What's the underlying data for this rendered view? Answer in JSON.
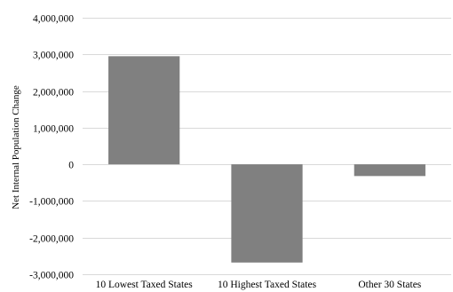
{
  "chart_data": {
    "type": "bar",
    "categories": [
      "10 Lowest Taxed States",
      "10 Highest Taxed States",
      "Other 30 States"
    ],
    "values": [
      2950000,
      -2680000,
      -320000
    ],
    "ylabel": "Net Internal Population Change",
    "ylim": [
      -3000000,
      4000000
    ],
    "yticks": [
      4000000,
      3000000,
      2000000,
      1000000,
      0,
      -1000000,
      -2000000,
      -3000000
    ],
    "ytick_labels": [
      "4,000,000",
      "3,000,000",
      "2,000,000",
      "1,000,000",
      "0",
      "-1,000,000",
      "-2,000,000",
      "-3,000,000"
    ],
    "grid": true,
    "bar_color": "#808080"
  }
}
